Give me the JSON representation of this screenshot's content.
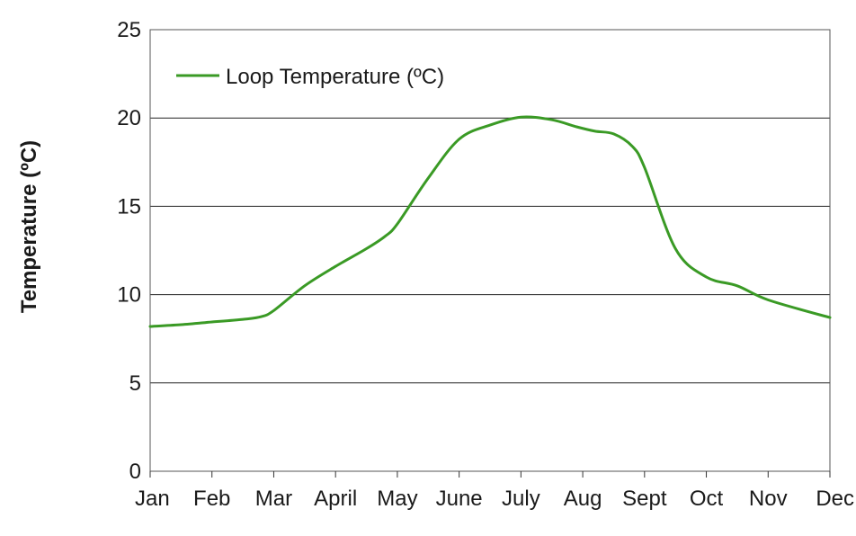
{
  "chart_data": {
    "type": "line",
    "title": "",
    "xlabel": "",
    "ylabel": "Temperature (ºC)",
    "categories": [
      "Jan",
      "Feb",
      "Mar",
      "April",
      "May",
      "June",
      "July",
      "Aug",
      "Sept",
      "Oct",
      "Nov",
      "Dec"
    ],
    "ylim": [
      0,
      25
    ],
    "yticks": [
      0,
      5,
      10,
      15,
      20,
      25
    ],
    "grid": true,
    "legend_position": "top-left",
    "series": [
      {
        "name": "Loop Temperature (ºC)",
        "color": "#3a9a25",
        "points": [
          {
            "x": 0,
            "y": 8.2
          },
          {
            "x": 0.5,
            "y": 8.3
          },
          {
            "x": 1,
            "y": 8.45
          },
          {
            "x": 1.5,
            "y": 8.6
          },
          {
            "x": 1.8,
            "y": 8.75
          },
          {
            "x": 2,
            "y": 9.1
          },
          {
            "x": 2.5,
            "y": 10.5
          },
          {
            "x": 3,
            "y": 11.6
          },
          {
            "x": 3.5,
            "y": 12.6
          },
          {
            "x": 3.8,
            "y": 13.3
          },
          {
            "x": 4,
            "y": 14.0
          },
          {
            "x": 4.5,
            "y": 16.6
          },
          {
            "x": 5,
            "y": 18.8
          },
          {
            "x": 5.5,
            "y": 19.6
          },
          {
            "x": 6,
            "y": 20.05
          },
          {
            "x": 6.5,
            "y": 19.9
          },
          {
            "x": 6.9,
            "y": 19.5
          },
          {
            "x": 7.2,
            "y": 19.25
          },
          {
            "x": 7.5,
            "y": 19.1
          },
          {
            "x": 7.8,
            "y": 18.4
          },
          {
            "x": 8,
            "y": 17.2
          },
          {
            "x": 8.5,
            "y": 12.6
          },
          {
            "x": 9,
            "y": 11.0
          },
          {
            "x": 9.5,
            "y": 10.5
          },
          {
            "x": 10,
            "y": 9.7
          },
          {
            "x": 11,
            "y": 8.7
          }
        ]
      }
    ]
  }
}
